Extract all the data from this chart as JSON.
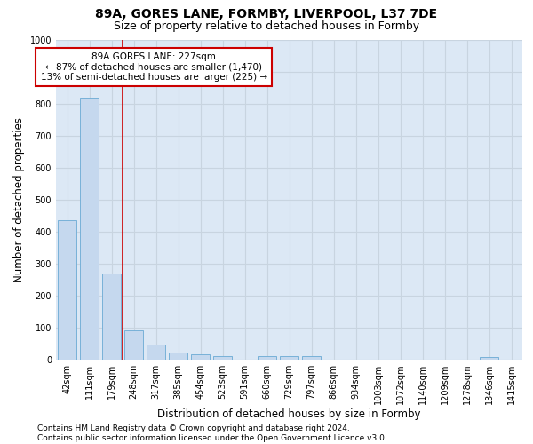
{
  "title": "89A, GORES LANE, FORMBY, LIVERPOOL, L37 7DE",
  "subtitle": "Size of property relative to detached houses in Formby",
  "xlabel": "Distribution of detached houses by size in Formby",
  "ylabel": "Number of detached properties",
  "bar_values": [
    435,
    820,
    270,
    93,
    47,
    22,
    17,
    12,
    0,
    12,
    12,
    12,
    0,
    0,
    0,
    0,
    0,
    0,
    0,
    7,
    0
  ],
  "x_labels": [
    "42sqm",
    "111sqm",
    "179sqm",
    "248sqm",
    "317sqm",
    "385sqm",
    "454sqm",
    "523sqm",
    "591sqm",
    "660sqm",
    "729sqm",
    "797sqm",
    "866sqm",
    "934sqm",
    "1003sqm",
    "1072sqm",
    "1140sqm",
    "1209sqm",
    "1278sqm",
    "1346sqm",
    "1415sqm"
  ],
  "bar_color": "#c5d8ee",
  "bar_edge_color": "#6aaad4",
  "vline_color": "#cc0000",
  "vline_x_index": 2,
  "ylim": [
    0,
    1000
  ],
  "yticks": [
    0,
    100,
    200,
    300,
    400,
    500,
    600,
    700,
    800,
    900,
    1000
  ],
  "grid_color": "#c8d4e0",
  "background_color": "#dce8f5",
  "annotation_line1": "89A GORES LANE: 227sqm",
  "annotation_line2": "← 87% of detached houses are smaller (1,470)",
  "annotation_line3": "13% of semi-detached houses are larger (225) →",
  "annotation_box_color": "#ffffff",
  "annotation_box_edge_color": "#cc0000",
  "footer_text": "Contains HM Land Registry data © Crown copyright and database right 2024.\nContains public sector information licensed under the Open Government Licence v3.0.",
  "title_fontsize": 10,
  "subtitle_fontsize": 9,
  "xlabel_fontsize": 8.5,
  "ylabel_fontsize": 8.5,
  "tick_fontsize": 7,
  "annotation_fontsize": 7.5,
  "footer_fontsize": 6.5
}
